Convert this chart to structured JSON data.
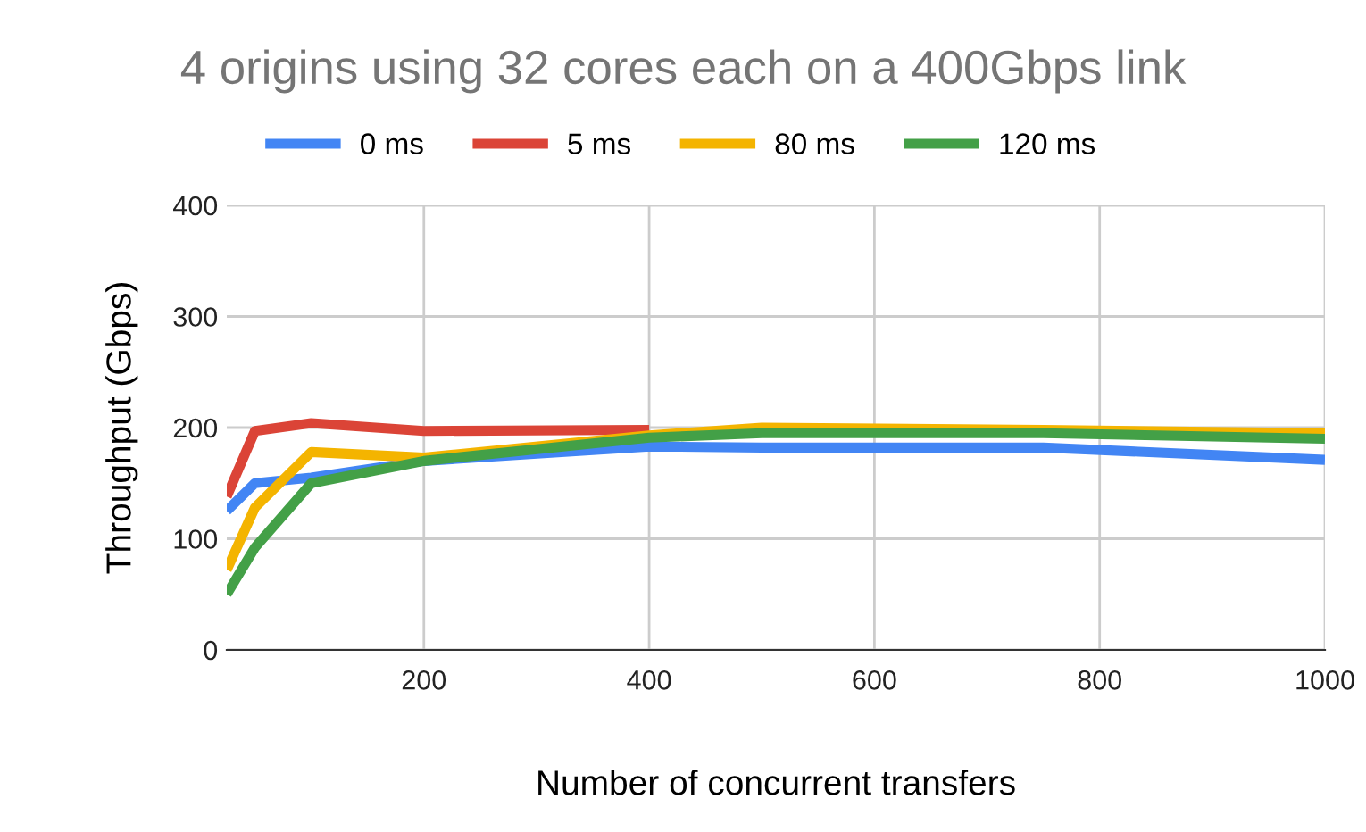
{
  "chart_data": {
    "type": "line",
    "title": "4 origins using 32 cores each on a 400Gbps link",
    "xlabel": "Number of concurrent transfers",
    "ylabel": "Throughput (Gbps)",
    "x": [
      25,
      50,
      100,
      200,
      400,
      500,
      750,
      1000
    ],
    "series": [
      {
        "name": "0 ms",
        "color": "#4285f4",
        "values": [
          125,
          150,
          155,
          170,
          183,
          182,
          182,
          171
        ]
      },
      {
        "name": "5 ms",
        "color": "#db4437",
        "values": [
          138,
          197,
          204,
          197,
          198,
          null,
          null,
          null
        ]
      },
      {
        "name": "80 ms",
        "color": "#f4b400",
        "values": [
          72,
          128,
          178,
          173,
          193,
          200,
          198,
          195
        ]
      },
      {
        "name": "120 ms",
        "color": "#43a047",
        "values": [
          50,
          92,
          150,
          170,
          191,
          195,
          195,
          190
        ]
      }
    ],
    "xlim": [
      25,
      1000
    ],
    "xticks": [
      200,
      400,
      600,
      800,
      1000
    ],
    "ylim": [
      0,
      400
    ],
    "yticks": [
      0,
      100,
      200,
      300,
      400
    ],
    "grid": true,
    "legend": "top",
    "marker": "none",
    "line_style": "solid"
  }
}
